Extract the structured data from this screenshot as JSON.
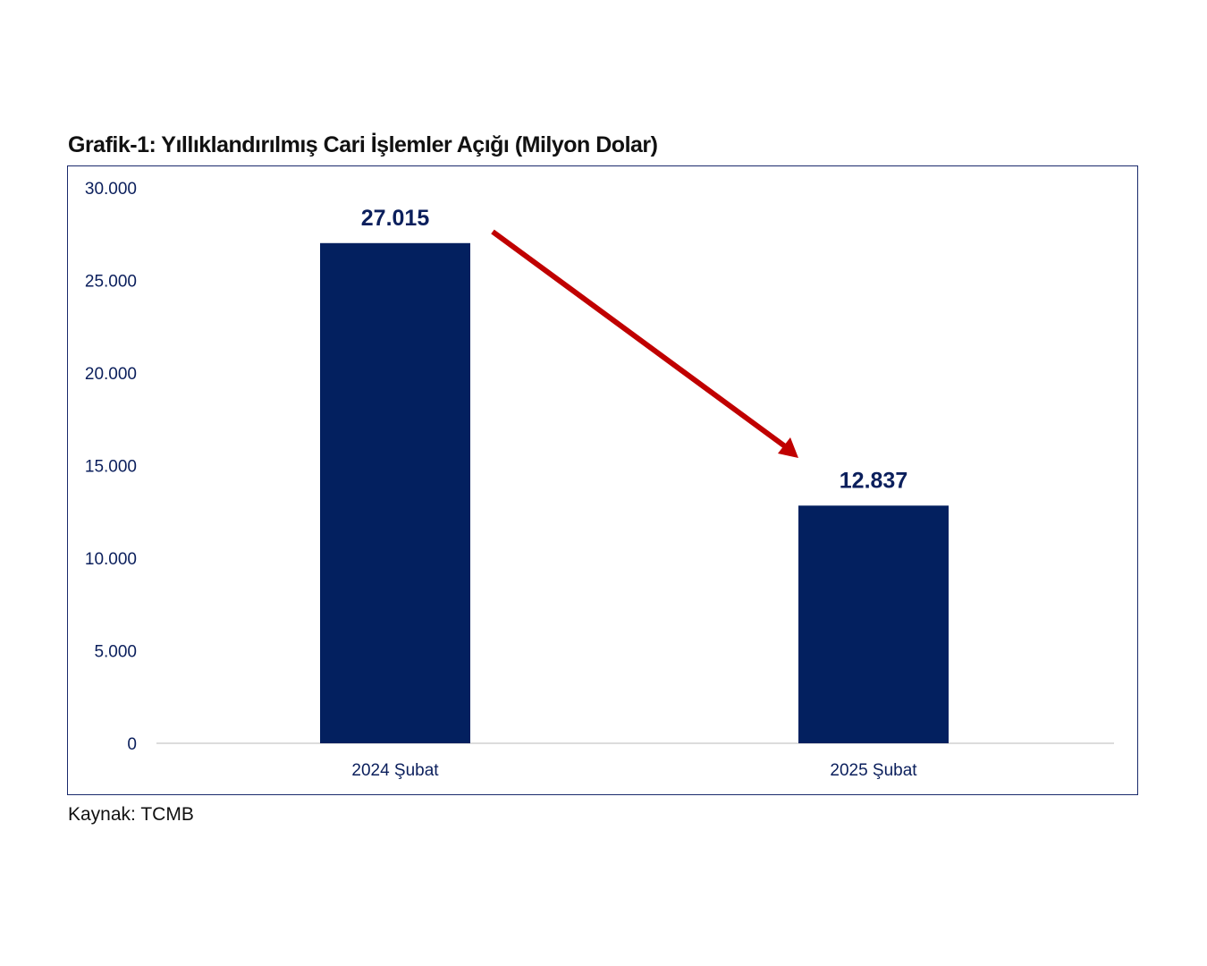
{
  "chart_data": {
    "type": "bar",
    "title": "Grafik-1: Yıllıklandırılmış Cari İşlemler Açığı (Milyon Dolar)",
    "categories": [
      "2024 Şubat",
      "2025 Şubat"
    ],
    "values": [
      27015,
      12837
    ],
    "data_labels": [
      "27.015",
      "12.837"
    ],
    "ylim": [
      0,
      30000
    ],
    "yticks": [
      0,
      5000,
      10000,
      15000,
      20000,
      25000,
      30000
    ],
    "ytick_labels": [
      "0",
      "5.000",
      "10.000",
      "15.000",
      "20.000",
      "25.000",
      "30.000"
    ],
    "xlabel": "",
    "ylabel": "",
    "grid": false,
    "bar_color": "#03205f",
    "annotation": {
      "type": "arrow",
      "direction": "down",
      "color": "#c00000"
    }
  },
  "source": "Kaynak: TCMB"
}
